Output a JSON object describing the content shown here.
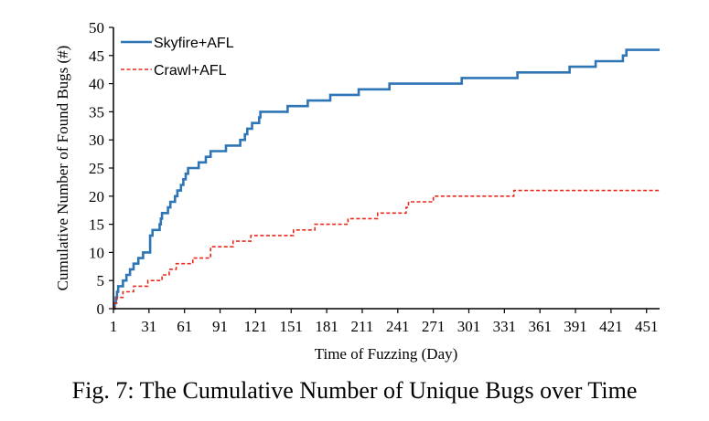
{
  "caption": "Fig. 7: The Cumulative Number of Unique Bugs over Time",
  "chart_data": {
    "type": "line",
    "title": "",
    "xlabel": "Time of Fuzzing (Day)",
    "ylabel": "Cumulative Number of Found Bugs (#)",
    "xlim": [
      1,
      462
    ],
    "ylim": [
      0,
      50
    ],
    "xticks": [
      1,
      31,
      61,
      91,
      121,
      151,
      181,
      211,
      241,
      271,
      301,
      331,
      361,
      391,
      421,
      451
    ],
    "yticks": [
      0,
      5,
      10,
      15,
      20,
      25,
      30,
      35,
      40,
      45,
      50
    ],
    "grid": false,
    "legend_position": "top-left",
    "step": true,
    "series": [
      {
        "name": "Skyfire+AFL",
        "color": "#2e75b6",
        "line_style": "solid",
        "points": [
          [
            1,
            0
          ],
          [
            2,
            1
          ],
          [
            3,
            2
          ],
          [
            4,
            3
          ],
          [
            5,
            4
          ],
          [
            9,
            5
          ],
          [
            12,
            6
          ],
          [
            15,
            7
          ],
          [
            18,
            8
          ],
          [
            22,
            9
          ],
          [
            26,
            10
          ],
          [
            32,
            13
          ],
          [
            34,
            14
          ],
          [
            40,
            15
          ],
          [
            41,
            16
          ],
          [
            42,
            17
          ],
          [
            47,
            18
          ],
          [
            49,
            19
          ],
          [
            53,
            20
          ],
          [
            55,
            21
          ],
          [
            58,
            22
          ],
          [
            60,
            23
          ],
          [
            62,
            24
          ],
          [
            64,
            25
          ],
          [
            73,
            26
          ],
          [
            79,
            27
          ],
          [
            83,
            28
          ],
          [
            96,
            29
          ],
          [
            108,
            30
          ],
          [
            112,
            31
          ],
          [
            114,
            32
          ],
          [
            118,
            33
          ],
          [
            124,
            34
          ],
          [
            125,
            35
          ],
          [
            148,
            36
          ],
          [
            165,
            37
          ],
          [
            184,
            38
          ],
          [
            208,
            39
          ],
          [
            234,
            40
          ],
          [
            295,
            41
          ],
          [
            342,
            42
          ],
          [
            386,
            43
          ],
          [
            408,
            44
          ],
          [
            431,
            45
          ],
          [
            434,
            46
          ],
          [
            462,
            46
          ]
        ]
      },
      {
        "name": "Crawl+AFL",
        "color": "#e8291c",
        "line_style": "dashed",
        "points": [
          [
            1,
            0
          ],
          [
            2,
            1
          ],
          [
            4,
            2
          ],
          [
            9,
            3
          ],
          [
            18,
            4
          ],
          [
            30,
            5
          ],
          [
            42,
            6
          ],
          [
            48,
            7
          ],
          [
            54,
            8
          ],
          [
            68,
            9
          ],
          [
            83,
            11
          ],
          [
            102,
            12
          ],
          [
            117,
            13
          ],
          [
            153,
            14
          ],
          [
            171,
            15
          ],
          [
            199,
            16
          ],
          [
            224,
            17
          ],
          [
            248,
            18
          ],
          [
            250,
            19
          ],
          [
            271,
            20
          ],
          [
            339,
            21
          ],
          [
            462,
            21
          ]
        ]
      }
    ]
  }
}
